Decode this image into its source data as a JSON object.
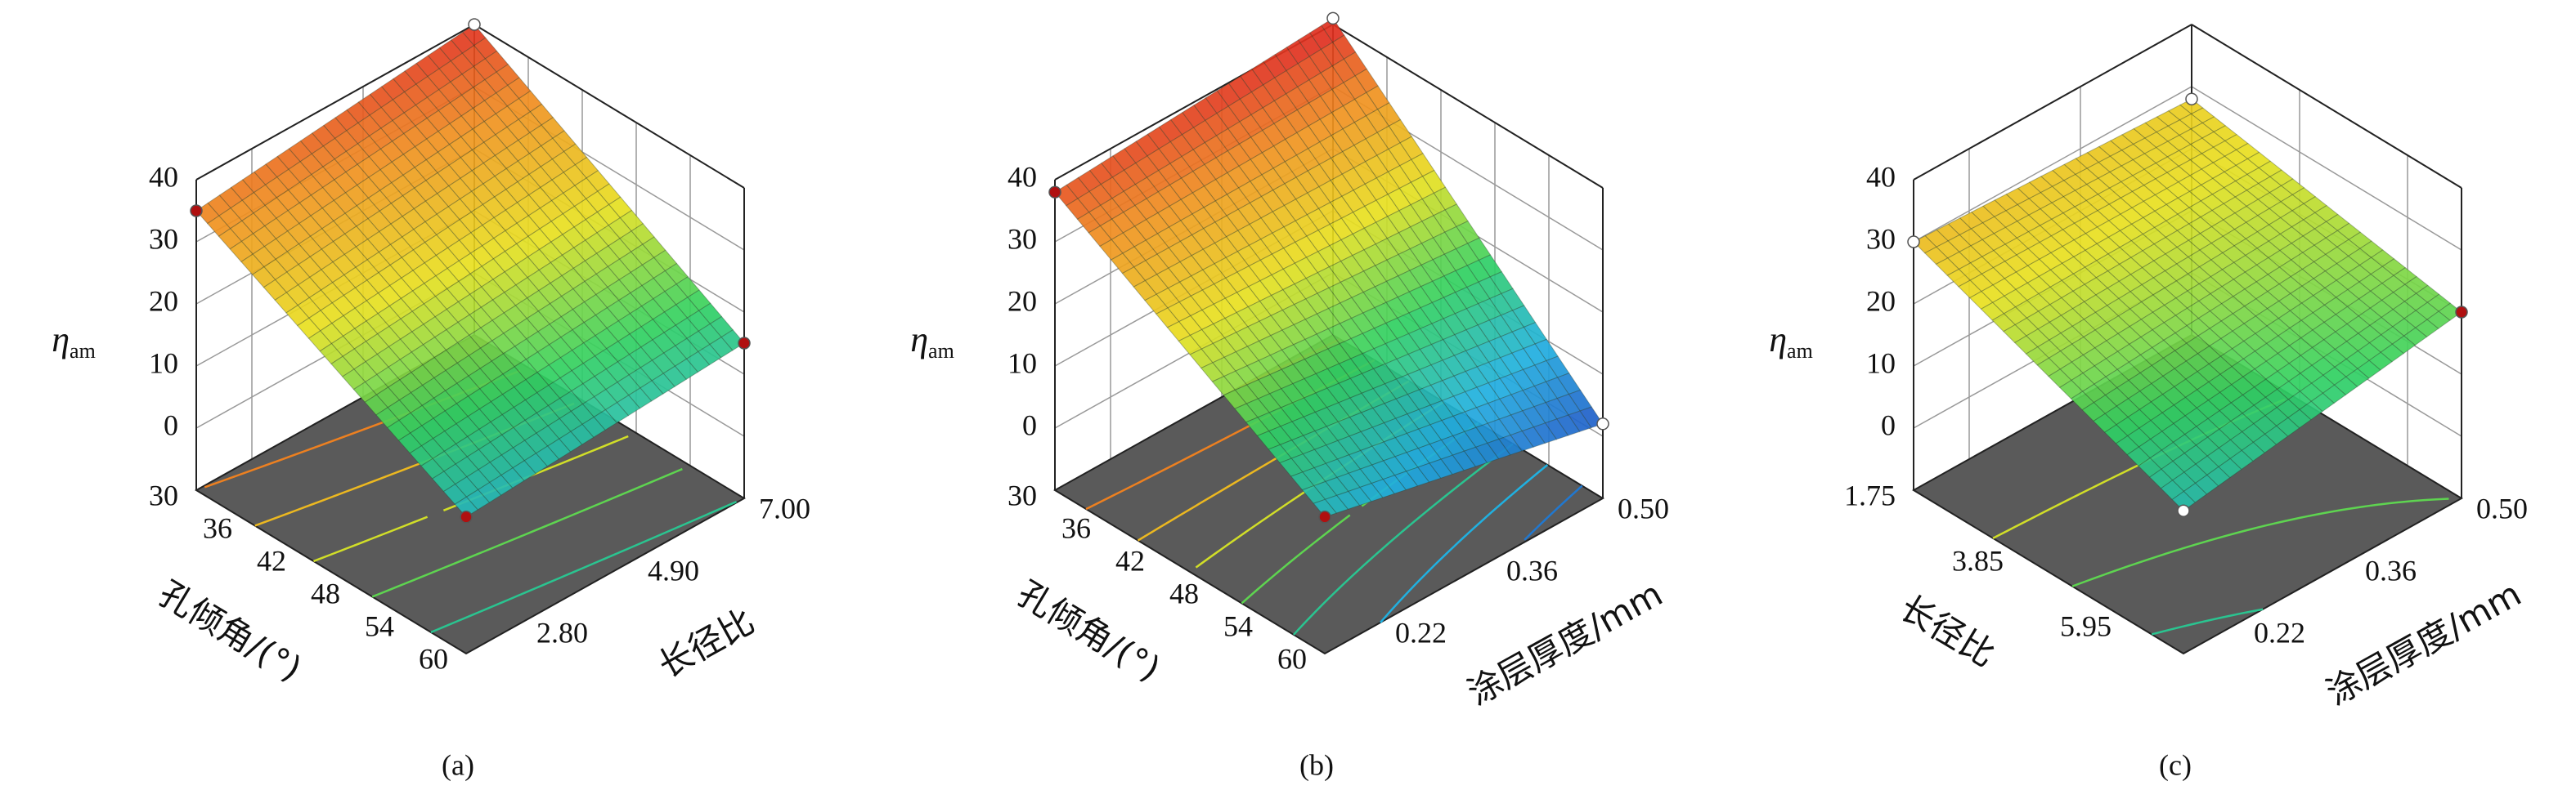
{
  "chart_data": [
    {
      "type": "surface",
      "caption": "(a)",
      "x_label": "孔倾角/(°)",
      "y_label": "长径比",
      "z_label": "η",
      "z_label_sub": "am",
      "xlim": [
        30,
        60
      ],
      "xticks": [
        30,
        36,
        42,
        48,
        54,
        60
      ],
      "ylim": [
        1.75,
        7
      ],
      "yticks": [
        {
          "value": 2.8,
          "label": "2.80"
        },
        {
          "value": 4.9,
          "label": "4.90"
        },
        {
          "value": 7,
          "label": "7.00"
        }
      ],
      "zlim": [
        -10,
        40
      ],
      "zticks": [
        0,
        10,
        20,
        30,
        40
      ],
      "z": [
        [
          35,
          40
        ],
        [
          12,
          15
        ]
      ],
      "point_colors": [
        [
          "#b01010",
          "#ffffff"
        ],
        [
          "#b01010",
          "#b01010"
        ]
      ]
    },
    {
      "type": "surface",
      "caption": "(b)",
      "x_label": "孔倾角/(°)",
      "y_label": "涂层厚度/mm",
      "z_label": "η",
      "z_label_sub": "am",
      "xlim": [
        30,
        60
      ],
      "xticks": [
        30,
        36,
        42,
        48,
        54,
        60
      ],
      "ylim": [
        0.15,
        0.5
      ],
      "yticks": [
        0.22,
        0.36,
        {
          "value": 0.5,
          "label": "0.50"
        }
      ],
      "zlim": [
        -10,
        40
      ],
      "zticks": [
        0,
        10,
        20,
        30,
        40
      ],
      "z": [
        [
          38,
          41
        ],
        [
          12,
          2
        ]
      ],
      "point_colors": [
        [
          "#b01010",
          "#ffffff"
        ],
        [
          "#b01010",
          "#ffffff"
        ]
      ]
    },
    {
      "type": "surface",
      "caption": "(c)",
      "x_label": "长径比",
      "y_label": "涂层厚度/mm",
      "z_label": "η",
      "z_label_sub": "am",
      "xlim": [
        1.75,
        7
      ],
      "xticks": [
        1.75,
        3.85,
        5.95
      ],
      "ylim": [
        0.15,
        0.5
      ],
      "yticks": [
        0.22,
        0.36,
        {
          "value": 0.5,
          "label": "0.50"
        }
      ],
      "zlim": [
        -10,
        40
      ],
      "zticks": [
        0,
        10,
        20,
        30,
        40
      ],
      "z": [
        [
          30,
          28
        ],
        [
          13,
          20
        ]
      ],
      "point_colors": [
        [
          "#ffffff",
          "#ffffff"
        ],
        [
          "#ffffff",
          "#b01010"
        ]
      ]
    }
  ]
}
